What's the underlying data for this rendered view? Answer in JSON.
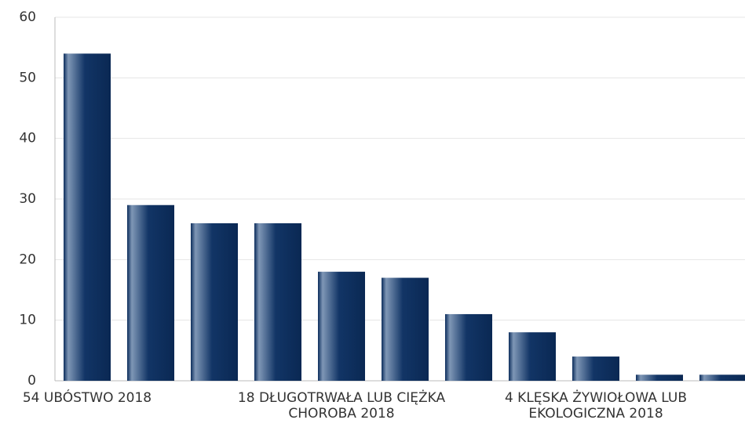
{
  "chart_data": {
    "type": "bar",
    "categories": [
      "54 UBÓSTWO 2018",
      null,
      null,
      null,
      "18 DŁUGOTRWAŁA LUB CIĘŻKA CHOROBA 2018",
      null,
      null,
      null,
      "4 KLĘSKA ŻYWIOŁOWA LUB EKOLOGICZNA 2018",
      null,
      null
    ],
    "values": [
      54,
      29,
      26,
      26,
      18,
      17,
      11,
      8,
      4,
      1,
      1
    ],
    "color": "#0c2d5c",
    "ylim": [
      0,
      60
    ],
    "yticks": [
      0,
      10,
      20,
      30,
      40,
      50,
      60
    ],
    "grid": true
  }
}
